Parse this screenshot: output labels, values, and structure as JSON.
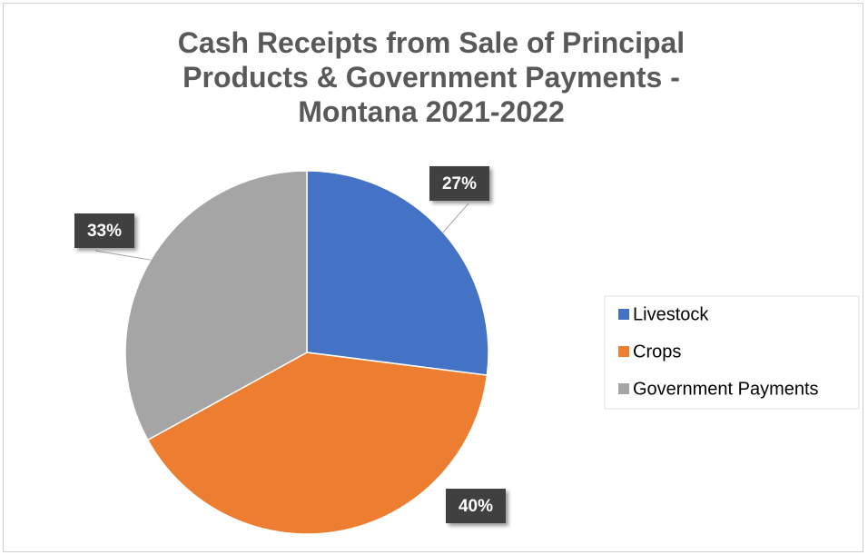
{
  "chart_data": {
    "type": "pie",
    "title": "Cash Receipts from Sale of Principal Products & Government Payments - Montana 2021-2022",
    "categories": [
      "Livestock",
      "Crops",
      "Government Payments"
    ],
    "values": [
      27,
      40,
      33
    ],
    "value_labels": [
      "27%",
      "40%",
      "33%"
    ],
    "colors": [
      "#4472c4",
      "#ed7d31",
      "#a5a5a5"
    ],
    "legend": "right"
  }
}
